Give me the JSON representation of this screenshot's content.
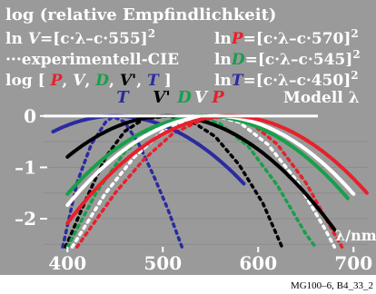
{
  "header": {
    "line1": "log (relative Empfindlichkeit)",
    "left2_prefix": "ln",
    "left2_var": "V",
    "left2_eq": "=[c·λ–c·555]",
    "left2_sup": "2",
    "right2_prefix": "ln",
    "right2_var": "P",
    "right2_eq": "=[c·λ–c·570]",
    "right2_sup": "2",
    "left3": "···experimentell-CIE",
    "right3_prefix": "ln",
    "right3_var": "D",
    "right3_eq": "=[c·λ–c·545]",
    "right3_sup": "2",
    "left4_open": "log [",
    "left4_p": "P",
    "left4_v": "V",
    "left4_d": "D",
    "left4_vp": "V'",
    "left4_t": "T",
    "left4_close": "]",
    "sep": ",",
    "right4_prefix": "ln",
    "right4_var": "T",
    "right4_eq": "=[c·λ–c·450]",
    "right4_sup": "2",
    "model": "Modell  λ"
  },
  "footer": "MG100–6, B4_33_2",
  "colors": {
    "background": "#9a9a9a",
    "P": "#e8202a",
    "V": "#ffffff",
    "D": "#16a04a",
    "Vprime": "#000000",
    "T": "#2b2ba0"
  },
  "chart_data": {
    "type": "line",
    "xlabel": "λ/nm",
    "ylabel": "",
    "xlim": [
      375,
      715
    ],
    "ylim": [
      -2.6,
      0.05
    ],
    "x_ticks": [
      400,
      500,
      600,
      700
    ],
    "y_ticks": [
      0,
      -1,
      -2
    ],
    "y_tick_labels": [
      "0",
      "–1",
      "–2"
    ],
    "peak_labels": [
      {
        "text": "T",
        "x": 450,
        "color": "#2b2ba0"
      },
      {
        "text": "V'",
        "x": 505,
        "color": "#000000"
      },
      {
        "text": "D",
        "x": 545,
        "color": "#16a04a"
      },
      {
        "text": "V",
        "x": 555,
        "color": "#ffffff"
      },
      {
        "text": "P",
        "x": 570,
        "color": "#e8202a"
      }
    ],
    "series": [
      {
        "name": "T",
        "style": "solid",
        "color": "#2b2ba0",
        "peak": 450,
        "c": 0.0085,
        "range": [
          385,
          585
        ]
      },
      {
        "name": "V'",
        "style": "solid",
        "color": "#000000",
        "peak": 505,
        "c": 0.0085,
        "range": [
          400,
          680
        ]
      },
      {
        "name": "D",
        "style": "solid",
        "color": "#16a04a",
        "peak": 545,
        "c": 0.0085,
        "range": [
          400,
          695
        ]
      },
      {
        "name": "V",
        "style": "solid",
        "color": "#ffffff",
        "peak": 555,
        "c": 0.0085,
        "range": [
          400,
          700
        ]
      },
      {
        "name": "P",
        "style": "solid",
        "color": "#e8202a",
        "peak": 570,
        "c": 0.0085,
        "range": [
          400,
          715
        ]
      },
      {
        "name": "T",
        "style": "dotted",
        "color": "#2b2ba0",
        "points": [
          [
            395,
            -2.55
          ],
          [
            410,
            -1.3
          ],
          [
            425,
            -0.55
          ],
          [
            440,
            -0.12
          ],
          [
            448,
            -0.01
          ],
          [
            460,
            -0.12
          ],
          [
            475,
            -0.55
          ],
          [
            490,
            -1.15
          ],
          [
            505,
            -1.8
          ],
          [
            520,
            -2.55
          ]
        ]
      },
      {
        "name": "V'",
        "style": "dotted",
        "color": "#000000",
        "points": [
          [
            398,
            -2.55
          ],
          [
            420,
            -1.6
          ],
          [
            440,
            -0.8
          ],
          [
            460,
            -0.3
          ],
          [
            480,
            -0.06
          ],
          [
            505,
            0
          ],
          [
            530,
            -0.1
          ],
          [
            555,
            -0.4
          ],
          [
            580,
            -0.95
          ],
          [
            605,
            -1.7
          ],
          [
            625,
            -2.55
          ]
        ]
      },
      {
        "name": "D",
        "style": "dotted",
        "color": "#16a04a",
        "points": [
          [
            400,
            -2.55
          ],
          [
            430,
            -1.5
          ],
          [
            460,
            -0.7
          ],
          [
            490,
            -0.25
          ],
          [
            515,
            -0.05
          ],
          [
            535,
            0
          ],
          [
            560,
            -0.15
          ],
          [
            590,
            -0.6
          ],
          [
            620,
            -1.35
          ],
          [
            650,
            -2.3
          ],
          [
            660,
            -2.55
          ]
        ]
      },
      {
        "name": "V",
        "style": "dotted",
        "color": "#ffffff",
        "points": [
          [
            405,
            -2.55
          ],
          [
            440,
            -1.5
          ],
          [
            470,
            -0.8
          ],
          [
            500,
            -0.3
          ],
          [
            530,
            -0.05
          ],
          [
            555,
            0
          ],
          [
            580,
            -0.12
          ],
          [
            610,
            -0.55
          ],
          [
            640,
            -1.25
          ],
          [
            670,
            -2.2
          ],
          [
            680,
            -2.55
          ]
        ]
      },
      {
        "name": "P",
        "style": "dotted",
        "color": "#e8202a",
        "points": [
          [
            410,
            -2.55
          ],
          [
            450,
            -1.5
          ],
          [
            480,
            -0.85
          ],
          [
            510,
            -0.35
          ],
          [
            540,
            -0.08
          ],
          [
            565,
            0
          ],
          [
            590,
            -0.1
          ],
          [
            620,
            -0.55
          ],
          [
            650,
            -1.3
          ],
          [
            680,
            -2.3
          ],
          [
            688,
            -2.55
          ]
        ]
      }
    ]
  }
}
